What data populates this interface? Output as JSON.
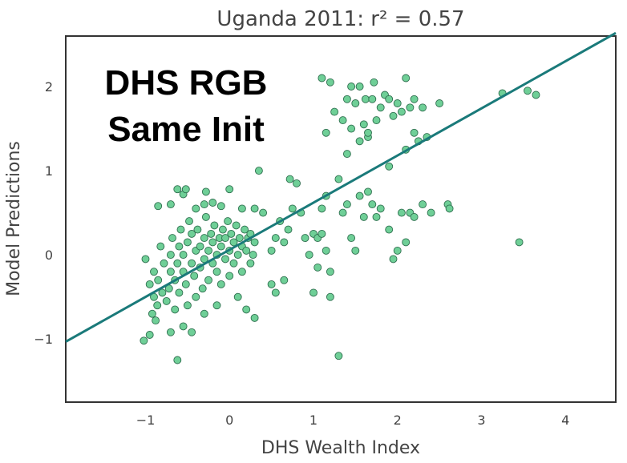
{
  "chart_data": {
    "type": "scatter",
    "title": "Uganda 2011: r² = 0.57",
    "xlabel": "DHS Wealth Index",
    "ylabel": "Model Predictions",
    "xlim": [
      -1.95,
      4.6
    ],
    "ylim": [
      -1.75,
      2.6
    ],
    "xticks": [
      -1,
      0,
      1,
      2,
      3,
      4
    ],
    "yticks": [
      -1,
      0,
      1,
      2
    ],
    "xtick_labels": [
      "−1",
      "0",
      "1",
      "2",
      "3",
      "4"
    ],
    "ytick_labels": [
      "−1",
      "0",
      "1",
      "2"
    ],
    "grid": false,
    "annotation_lines": [
      "DHS RGB",
      "Same Init"
    ],
    "fit_line": {
      "slope": 0.56,
      "intercept": 0.06
    },
    "colors": {
      "points": "#6fcf97",
      "points_edge": "#2f6f4f",
      "fit_line": "#1a7a7a",
      "frame": "#333333"
    },
    "points": [
      [
        -1.0,
        -0.05
      ],
      [
        -0.95,
        -0.35
      ],
      [
        -0.9,
        -0.5
      ],
      [
        -0.92,
        -0.7
      ],
      [
        -0.88,
        -0.78
      ],
      [
        -0.86,
        -0.6
      ],
      [
        -0.9,
        -0.2
      ],
      [
        -0.85,
        -0.3
      ],
      [
        -0.8,
        -0.45
      ],
      [
        -0.82,
        0.1
      ],
      [
        -0.78,
        -0.1
      ],
      [
        -0.75,
        -0.55
      ],
      [
        -0.72,
        -0.4
      ],
      [
        -0.7,
        -0.2
      ],
      [
        -0.7,
        0.0
      ],
      [
        -0.68,
        0.2
      ],
      [
        -0.65,
        -0.3
      ],
      [
        -0.65,
        -0.65
      ],
      [
        -0.62,
        -0.1
      ],
      [
        -0.6,
        0.1
      ],
      [
        -0.6,
        -0.45
      ],
      [
        -0.58,
        0.3
      ],
      [
        -0.55,
        -0.2
      ],
      [
        -0.55,
        0.0
      ],
      [
        -0.52,
        -0.35
      ],
      [
        -0.5,
        0.15
      ],
      [
        -0.5,
        -0.6
      ],
      [
        -0.48,
        0.4
      ],
      [
        -0.45,
        -0.1
      ],
      [
        -0.45,
        0.25
      ],
      [
        -0.42,
        -0.25
      ],
      [
        -0.4,
        0.05
      ],
      [
        -0.4,
        -0.5
      ],
      [
        -0.38,
        0.3
      ],
      [
        -0.35,
        -0.15
      ],
      [
        -0.35,
        0.1
      ],
      [
        -0.32,
        -0.4
      ],
      [
        -0.3,
        0.2
      ],
      [
        -0.3,
        -0.05
      ],
      [
        -0.28,
        0.45
      ],
      [
        -0.25,
        -0.3
      ],
      [
        -0.25,
        0.05
      ],
      [
        -0.22,
        0.25
      ],
      [
        -0.2,
        -0.1
      ],
      [
        -0.2,
        0.15
      ],
      [
        -0.18,
        0.35
      ],
      [
        -0.15,
        -0.2
      ],
      [
        -0.15,
        0.0
      ],
      [
        -0.12,
        0.2
      ],
      [
        -0.1,
        -0.35
      ],
      [
        -0.1,
        0.1
      ],
      [
        -0.08,
        0.3
      ],
      [
        -0.05,
        -0.05
      ],
      [
        -0.05,
        0.2
      ],
      [
        -0.02,
        0.4
      ],
      [
        0.0,
        -0.25
      ],
      [
        0.0,
        0.05
      ],
      [
        0.02,
        0.25
      ],
      [
        0.05,
        -0.1
      ],
      [
        0.05,
        0.15
      ],
      [
        0.08,
        0.35
      ],
      [
        0.1,
        0.0
      ],
      [
        0.12,
        0.2
      ],
      [
        0.15,
        -0.2
      ],
      [
        0.15,
        0.1
      ],
      [
        0.18,
        0.3
      ],
      [
        0.2,
        0.05
      ],
      [
        0.22,
        0.2
      ],
      [
        0.25,
        -0.1
      ],
      [
        0.25,
        0.25
      ],
      [
        0.28,
        0.0
      ],
      [
        0.3,
        0.15
      ],
      [
        -0.95,
        -0.95
      ],
      [
        -1.02,
        -1.02
      ],
      [
        -0.7,
        -0.92
      ],
      [
        -0.55,
        -0.85
      ],
      [
        -0.45,
        -0.92
      ],
      [
        -0.62,
        -1.25
      ],
      [
        -0.3,
        -0.7
      ],
      [
        -0.15,
        -0.6
      ],
      [
        0.1,
        -0.5
      ],
      [
        0.2,
        -0.65
      ],
      [
        0.3,
        -0.75
      ],
      [
        0.5,
        -0.35
      ],
      [
        0.55,
        -0.45
      ],
      [
        0.65,
        -0.3
      ],
      [
        -0.85,
        0.58
      ],
      [
        -0.7,
        0.6
      ],
      [
        -0.62,
        0.78
      ],
      [
        -0.55,
        0.72
      ],
      [
        -0.52,
        0.78
      ],
      [
        -0.4,
        0.55
      ],
      [
        -0.3,
        0.6
      ],
      [
        -0.28,
        0.75
      ],
      [
        -0.2,
        0.62
      ],
      [
        -0.1,
        0.58
      ],
      [
        0.0,
        0.78
      ],
      [
        0.15,
        0.55
      ],
      [
        0.3,
        0.55
      ],
      [
        0.4,
        0.5
      ],
      [
        0.35,
        1.0
      ],
      [
        0.6,
        0.4
      ],
      [
        0.55,
        0.2
      ],
      [
        0.5,
        0.05
      ],
      [
        0.65,
        0.15
      ],
      [
        0.7,
        0.3
      ],
      [
        0.75,
        0.55
      ],
      [
        0.72,
        0.9
      ],
      [
        0.8,
        0.85
      ],
      [
        0.85,
        0.5
      ],
      [
        0.9,
        0.2
      ],
      [
        0.95,
        0.0
      ],
      [
        1.0,
        0.25
      ],
      [
        1.05,
        0.2
      ],
      [
        1.1,
        0.55
      ],
      [
        1.15,
        0.7
      ],
      [
        1.05,
        -0.15
      ],
      [
        1.15,
        0.05
      ],
      [
        1.2,
        -0.2
      ],
      [
        1.1,
        0.25
      ],
      [
        1.3,
        0.9
      ],
      [
        1.35,
        0.5
      ],
      [
        1.4,
        0.6
      ],
      [
        1.45,
        0.2
      ],
      [
        1.5,
        0.05
      ],
      [
        1.55,
        0.7
      ],
      [
        1.6,
        0.45
      ],
      [
        1.65,
        0.75
      ],
      [
        1.7,
        0.6
      ],
      [
        1.75,
        0.45
      ],
      [
        1.8,
        0.55
      ],
      [
        1.9,
        0.3
      ],
      [
        2.05,
        0.5
      ],
      [
        2.1,
        0.15
      ],
      [
        2.15,
        0.5
      ],
      [
        2.2,
        0.45
      ],
      [
        2.4,
        0.5
      ],
      [
        2.6,
        0.6
      ],
      [
        2.62,
        0.55
      ],
      [
        2.3,
        0.6
      ],
      [
        2.0,
        0.05
      ],
      [
        1.95,
        -0.05
      ],
      [
        3.45,
        0.15
      ],
      [
        1.3,
        -1.2
      ],
      [
        1.2,
        -0.5
      ],
      [
        1.0,
        -0.45
      ],
      [
        1.15,
        1.45
      ],
      [
        1.1,
        2.1
      ],
      [
        1.2,
        2.05
      ],
      [
        1.25,
        1.7
      ],
      [
        1.35,
        1.6
      ],
      [
        1.4,
        1.2
      ],
      [
        1.45,
        2.0
      ],
      [
        1.5,
        1.8
      ],
      [
        1.55,
        2.0
      ],
      [
        1.6,
        1.55
      ],
      [
        1.65,
        1.4
      ],
      [
        1.62,
        1.85
      ],
      [
        1.7,
        1.85
      ],
      [
        1.72,
        2.05
      ],
      [
        1.75,
        1.6
      ],
      [
        1.8,
        1.75
      ],
      [
        1.85,
        1.9
      ],
      [
        1.9,
        1.85
      ],
      [
        1.95,
        1.65
      ],
      [
        2.0,
        1.8
      ],
      [
        2.05,
        1.7
      ],
      [
        2.1,
        2.1
      ],
      [
        2.15,
        1.75
      ],
      [
        2.2,
        1.85
      ],
      [
        2.3,
        1.75
      ],
      [
        2.35,
        1.4
      ],
      [
        2.5,
        1.8
      ],
      [
        2.2,
        1.45
      ],
      [
        2.25,
        1.35
      ],
      [
        1.55,
        1.35
      ],
      [
        1.65,
        1.45
      ],
      [
        1.4,
        1.85
      ],
      [
        1.45,
        1.5
      ],
      [
        3.25,
        1.92
      ],
      [
        3.55,
        1.95
      ],
      [
        3.65,
        1.9
      ],
      [
        1.9,
        1.05
      ],
      [
        2.1,
        1.25
      ]
    ]
  }
}
